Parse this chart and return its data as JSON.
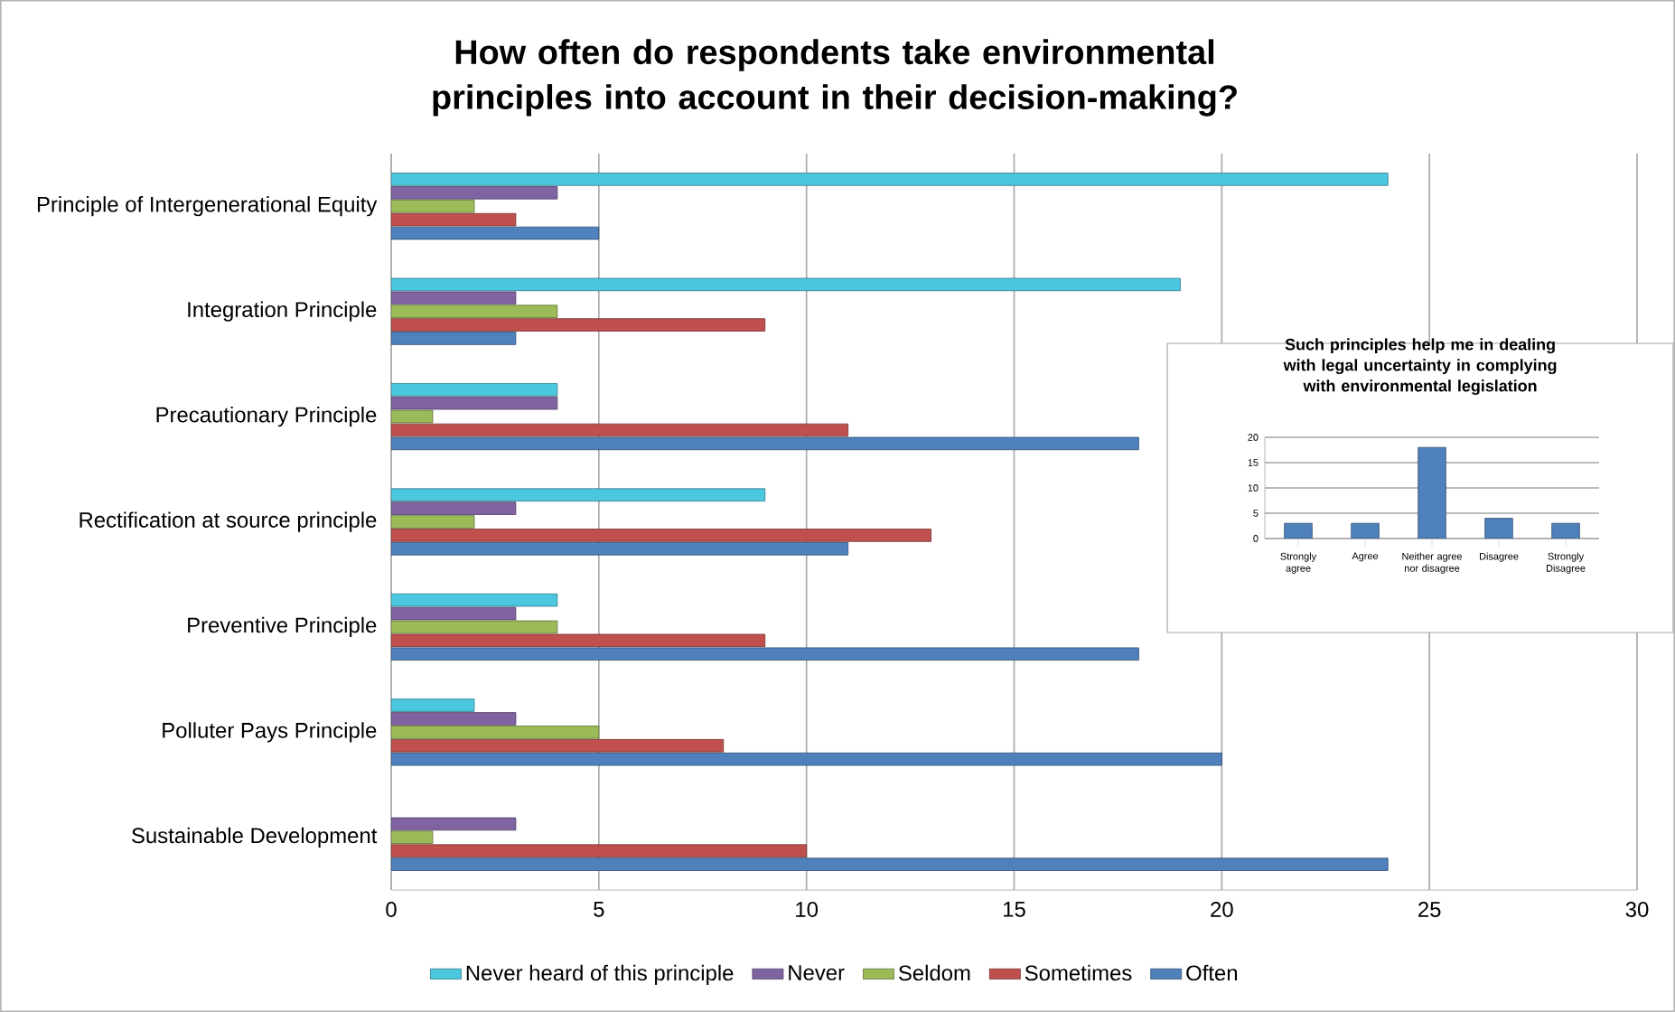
{
  "chart_data": [
    {
      "type": "bar",
      "orientation": "horizontal",
      "title": "How often do respondents take environmental principles into account in their decision-making?",
      "categories": [
        "Principle of Intergenerational Equity",
        "Integration Principle",
        "Precautionary Principle",
        "Rectification at source principle",
        "Preventive Principle",
        "Polluter Pays Principle",
        "Sustainable Development"
      ],
      "series": [
        {
          "name": "Never heard of this principle",
          "color": "#4bc8e0",
          "values": [
            24,
            19,
            4,
            9,
            4,
            2,
            null
          ]
        },
        {
          "name": "Never",
          "color": "#8064a2",
          "values": [
            4,
            3,
            4,
            3,
            3,
            3,
            3
          ]
        },
        {
          "name": "Seldom",
          "color": "#9bbb59",
          "values": [
            2,
            4,
            1,
            2,
            4,
            5,
            1
          ]
        },
        {
          "name": "Sometimes",
          "color": "#c0504d",
          "values": [
            3,
            9,
            11,
            13,
            9,
            8,
            10
          ]
        },
        {
          "name": "Often",
          "color": "#4f81bd",
          "values": [
            5,
            3,
            18,
            11,
            18,
            20,
            24
          ]
        }
      ],
      "xlim": [
        0,
        30
      ],
      "xticks": [
        0,
        5,
        10,
        15,
        20,
        25,
        30
      ],
      "grid": "x",
      "legend": "bottom"
    },
    {
      "type": "bar",
      "title": "Such principles help me in dealing with legal uncertainty in complying with environmental legislation",
      "categories": [
        "Strongly agree",
        "Agree",
        "Neither agree nor disagree",
        "Disagree",
        "Strongly Disagree"
      ],
      "values": [
        3,
        3,
        18,
        4,
        3
      ],
      "color": "#4f81bd",
      "ylim": [
        0,
        20
      ],
      "yticks": [
        0,
        5,
        10,
        15,
        20
      ],
      "grid": "y"
    }
  ]
}
